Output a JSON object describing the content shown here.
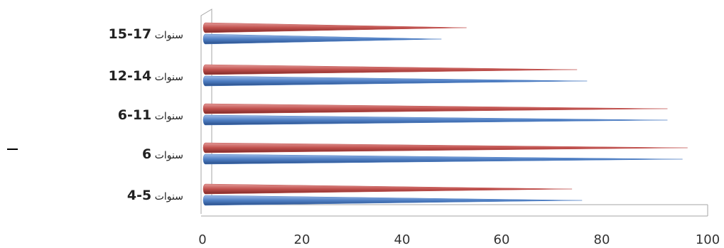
{
  "chart_data": {
    "type": "bar",
    "orientation": "horizontal",
    "categories": [
      {
        "num": "5-4",
        "word": "سنوات"
      },
      {
        "num": "6",
        "word": "سنوات"
      },
      {
        "num": "11-6",
        "word": "سنوات"
      },
      {
        "num": "14-12",
        "word": "سنوات"
      },
      {
        "num": "17-15",
        "word": "سنوات"
      }
    ],
    "series": [
      {
        "color": "#4f7fc4",
        "values": [
          75,
          95,
          92,
          76,
          47
        ]
      },
      {
        "color": "#c0504d",
        "values": [
          73,
          96,
          92,
          74,
          52
        ]
      }
    ],
    "xlim": [
      0,
      100
    ],
    "xticks": [
      0,
      20,
      40,
      60,
      80,
      100
    ],
    "grid": false,
    "legend": "none",
    "bar_style": "cone"
  },
  "marks": {
    "dash": "–"
  }
}
